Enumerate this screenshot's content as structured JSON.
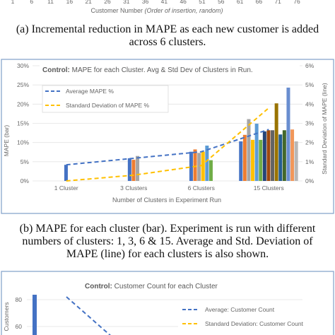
{
  "top_fragment": {
    "ticks": [
      "1",
      "6",
      "11",
      "16",
      "21",
      "26",
      "31",
      "36",
      "41",
      "46",
      "51",
      "56",
      "61",
      "66",
      "71",
      "76"
    ],
    "xlabel_main": "Customer Number",
    "xlabel_italic": "(Order of insertion, random)"
  },
  "captions": {
    "a_line1": "(a) Incremental reduction in MAPE as each new customer is added",
    "a_line2": "across 6 clusters.",
    "b_line1": "(b) MAPE for each cluster (bar). Experiment is run with different",
    "b_line2": "numbers of clusters: 1, 3, 6 & 15. Average and Std. Deviation of",
    "b_line3": "MAPE (line) for each clusters is also shown."
  },
  "chart_data": [
    {
      "type": "bar",
      "title_bold": "Control:",
      "title": "MAPE for each Cluster. Avg & Std Dev of Clusters in Run.",
      "xlabel": "Number of Clusters in Experiment Run",
      "ylabel": "MAPE (bar)",
      "y2label": "Standard Deviation of MAPE (line)",
      "ylim": [
        0,
        30
      ],
      "y2lim": [
        0,
        6
      ],
      "yticks": [
        "0%",
        "5%",
        "10%",
        "15%",
        "20%",
        "25%",
        "30%"
      ],
      "y2ticks": [
        "0%",
        "1%",
        "2%",
        "3%",
        "4%",
        "5%",
        "6%"
      ],
      "categories": [
        "1 Cluster",
        "3 Clusters",
        "6 Clusters",
        "15 Clusters"
      ],
      "bar_groups": [
        [
          4.2
        ],
        [
          5.9,
          5.5,
          6.5
        ],
        [
          7.6,
          8.2,
          7.3,
          7.6,
          9.2,
          5.4
        ],
        [
          10.3,
          12.0,
          16.1,
          10.7,
          14.9,
          10.7,
          12.9,
          13.2,
          13.2,
          20.2,
          12.1,
          13.2,
          24.3,
          13.4,
          10.3
        ]
      ],
      "bar_colors": [
        "#4472C4",
        "#ED7D31",
        "#A5A5A5",
        "#FFC000",
        "#5B9BD5",
        "#70AD47",
        "#264478",
        "#9E480E",
        "#636363",
        "#997300",
        "#255E91",
        "#43682B",
        "#698ED0",
        "#F1975A",
        "#B7B7B7"
      ],
      "series": [
        {
          "name": "Average MAPE %",
          "axis": "left",
          "values": [
            4.2,
            5.9,
            7.6,
            13.4
          ],
          "color": "#4472C4"
        },
        {
          "name": "Standard Deviation of MAPE %",
          "axis": "right",
          "values": [
            0.0,
            0.3,
            0.8,
            3.8
          ],
          "color": "#FFC000"
        }
      ],
      "legend_position": "top-left"
    },
    {
      "type": "bar",
      "title_bold": "Control:",
      "title": "Customer Count for each Cluster",
      "ylabel": "Customers",
      "yticks": [
        "60",
        "80"
      ],
      "first_bar_value": 84,
      "series": [
        {
          "name": "Average: Customer Count",
          "values": [
            84
          ],
          "color": "#4472C4"
        },
        {
          "name": "Standard Deviation: Customer Count",
          "color": "#FFC000"
        }
      ],
      "legend_position": "right"
    }
  ]
}
